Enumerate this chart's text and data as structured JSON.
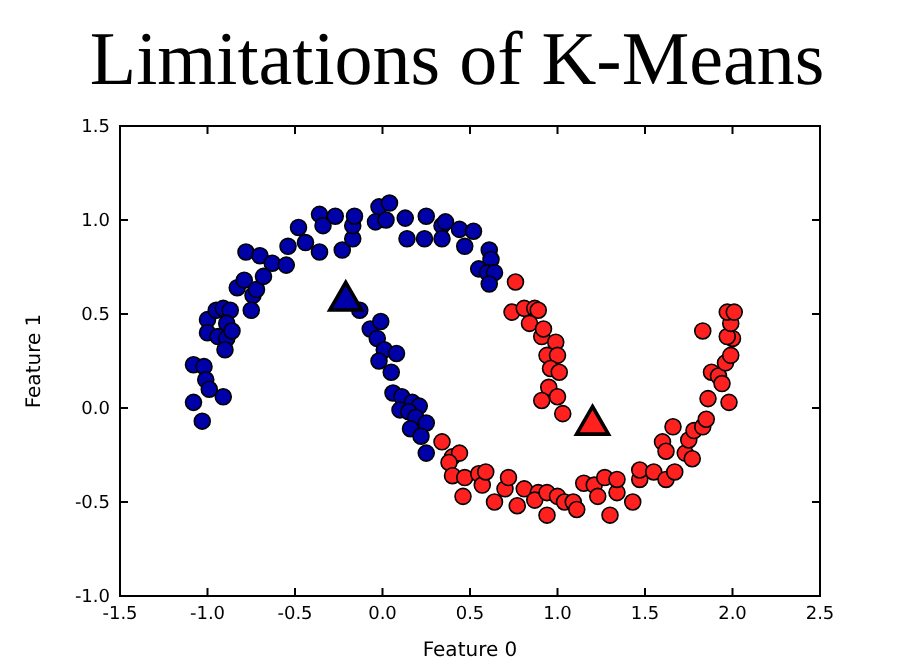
{
  "chart_data": {
    "type": "scatter",
    "title": "Limitations of K-Means",
    "xlabel": "Feature 0",
    "ylabel": "Feature 1",
    "xlim": [
      -1.5,
      2.5
    ],
    "ylim": [
      -1.0,
      1.5
    ],
    "xticks": [
      {
        "value": -1.5,
        "label": "-1.5"
      },
      {
        "value": -1,
        "label": "-1.0"
      },
      {
        "value": -0.5,
        "label": "-0.5"
      },
      {
        "value": 0,
        "label": "0.0"
      },
      {
        "value": 0.5,
        "label": "0.5"
      },
      {
        "value": 1,
        "label": "1.0"
      },
      {
        "value": 1.5,
        "label": "1.5"
      },
      {
        "value": 2,
        "label": "2.0"
      },
      {
        "value": 2.5,
        "label": "2.5"
      }
    ],
    "yticks": [
      {
        "value": -1,
        "label": "-1.0"
      },
      {
        "value": -0.5,
        "label": "-0.5"
      },
      {
        "value": 0,
        "label": "0.0"
      },
      {
        "value": 0.5,
        "label": "0.5"
      },
      {
        "value": 1,
        "label": "1.0"
      },
      {
        "value": 1.5,
        "label": "1.5"
      }
    ],
    "marker": "circle",
    "grid": false,
    "series": [
      {
        "color": "#0000a8",
        "x": [
          -1.08,
          -1.03,
          -1.08,
          -1.02,
          -1.01,
          -0.99,
          -0.91,
          -1.0,
          -0.95,
          -0.91,
          -0.87,
          -0.89,
          -1.0,
          -0.94,
          -0.89,
          -0.9,
          -0.86,
          -0.83,
          -0.79,
          -0.74,
          -0.72,
          -0.75,
          -0.68,
          -0.78,
          -0.7,
          -0.63,
          -0.55,
          -0.54,
          -0.48,
          -0.44,
          -0.36,
          -0.36,
          -0.34,
          -0.27,
          -0.23,
          -0.17,
          -0.17,
          -0.16,
          -0.02,
          0.04,
          -0.04,
          0.02,
          0.13,
          0.14,
          0.24,
          0.25,
          0.34,
          0.34,
          -0.13,
          -0.07,
          -0.01,
          -0.03,
          0.01,
          -0.02,
          0.08,
          0.05,
          0.06,
          0.11,
          0.17,
          0.21,
          0.1,
          0.15,
          0.19,
          0.25,
          0.16,
          0.22,
          0.25,
          0.36,
          0.44,
          0.52,
          0.47,
          0.61,
          0.62,
          0.55,
          0.6,
          0.64,
          0.61
        ],
        "values": [
          0.03,
          -0.07,
          0.23,
          0.22,
          0.15,
          0.1,
          0.06,
          0.47,
          0.52,
          0.53,
          0.52,
          0.45,
          0.4,
          0.38,
          0.37,
          0.31,
          0.41,
          0.64,
          0.68,
          0.6,
          0.63,
          0.52,
          0.7,
          0.83,
          0.81,
          0.77,
          0.76,
          0.86,
          0.96,
          0.88,
          0.83,
          1.03,
          0.97,
          1.02,
          0.84,
          0.9,
          0.97,
          1.02,
          1.07,
          1.09,
          0.99,
          1.0,
          1.01,
          0.9,
          0.9,
          1.02,
          0.97,
          0.9,
          0.52,
          0.42,
          0.46,
          0.37,
          0.31,
          0.25,
          0.29,
          0.19,
          0.08,
          0.06,
          0.03,
          0.01,
          -0.01,
          -0.02,
          -0.05,
          -0.08,
          -0.11,
          -0.15,
          -0.24,
          0.99,
          0.95,
          0.94,
          0.86,
          0.84,
          0.79,
          0.74,
          0.72,
          0.72,
          0.66
        ]
      },
      {
        "color": "#ff2020",
        "x": [
          0.76,
          0.74,
          0.81,
          0.87,
          0.89,
          0.84,
          0.91,
          0.92,
          0.99,
          0.94,
          1.0,
          0.96,
          1.01,
          0.95,
          1.0,
          0.91,
          1.03,
          0.34,
          0.4,
          0.44,
          0.38,
          0.4,
          0.47,
          0.46,
          0.55,
          0.57,
          0.59,
          0.64,
          0.7,
          0.72,
          0.77,
          0.81,
          0.89,
          0.87,
          0.94,
          0.94,
          1.0,
          1.04,
          1.09,
          1.11,
          1.15,
          1.21,
          1.23,
          1.27,
          1.3,
          1.34,
          1.34,
          1.43,
          1.47,
          1.47,
          1.55,
          1.62,
          1.67,
          1.6,
          1.62,
          1.66,
          1.73,
          1.77,
          1.75,
          1.78,
          1.83,
          1.85,
          1.86,
          1.88,
          1.92,
          1.94,
          1.98,
          1.96,
          1.99,
          2.0,
          1.97,
          1.99,
          1.97,
          2.01,
          1.83
        ],
        "values": [
          0.67,
          0.51,
          0.53,
          0.53,
          0.52,
          0.45,
          0.38,
          0.42,
          0.35,
          0.28,
          0.28,
          0.21,
          0.19,
          0.11,
          0.06,
          0.04,
          -0.03,
          -0.18,
          -0.26,
          -0.24,
          -0.29,
          -0.36,
          -0.37,
          -0.47,
          -0.35,
          -0.41,
          -0.34,
          -0.5,
          -0.43,
          -0.37,
          -0.52,
          -0.43,
          -0.45,
          -0.49,
          -0.57,
          -0.45,
          -0.47,
          -0.5,
          -0.5,
          -0.54,
          -0.4,
          -0.41,
          -0.47,
          -0.37,
          -0.57,
          -0.45,
          -0.38,
          -0.5,
          -0.38,
          -0.33,
          -0.34,
          -0.38,
          -0.34,
          -0.18,
          -0.23,
          -0.1,
          -0.24,
          -0.27,
          -0.17,
          -0.12,
          -0.1,
          -0.06,
          0.05,
          0.19,
          0.17,
          0.13,
          0.03,
          0.24,
          0.28,
          0.37,
          0.38,
          0.45,
          0.51,
          0.51,
          0.41
        ]
      },
      {
        "marker": "triangle",
        "colors": [
          "#0000a8",
          "#ff2020"
        ],
        "x": [
          -0.21,
          1.2
        ],
        "values": [
          0.57,
          -0.09
        ]
      }
    ]
  }
}
